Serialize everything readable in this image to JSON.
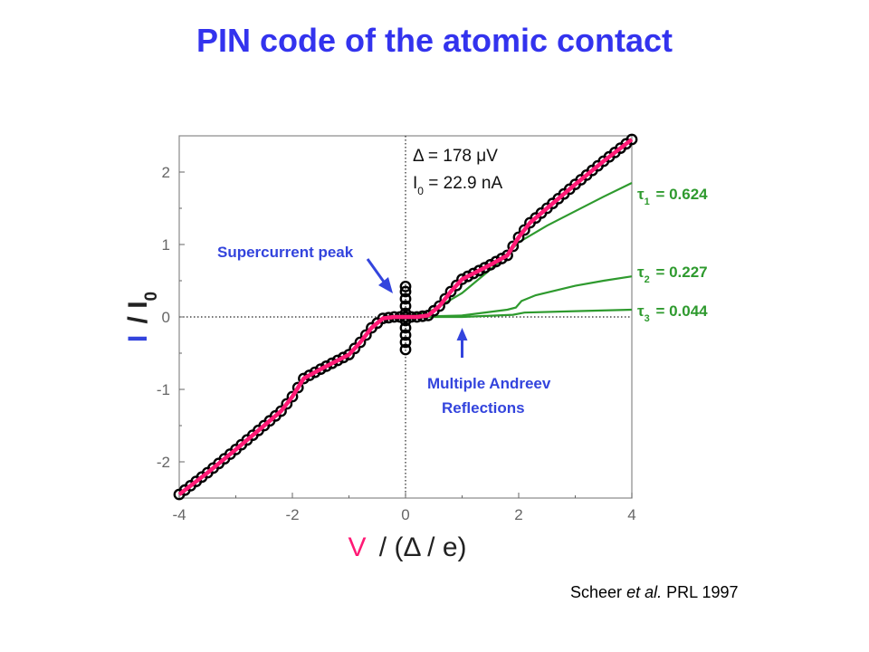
{
  "slide": {
    "title": "PIN code of the atomic contact",
    "citation": {
      "author": "Scheer",
      "etal": "et al.",
      "journal": "PRL 1997"
    }
  },
  "colors": {
    "title": "#3333ee",
    "experiment_markers": "#000000",
    "fit_total": "#ff1a75",
    "channels": "#2e9a2e",
    "annotation_blue": "#3344dd",
    "axis_tick_labels": "#666666"
  },
  "chart_data": {
    "type": "scatter",
    "xlabel": {
      "symbol": "V",
      "rest": "/ (Δ / e)"
    },
    "ylabel": {
      "symbol": "I",
      "rest": "/ I",
      "sub": "0"
    },
    "xlim": [
      -4,
      4
    ],
    "ylim": [
      -2.5,
      2.5
    ],
    "x_ticks": [
      -4,
      -2,
      0,
      2,
      4
    ],
    "y_ticks": [
      -2,
      -1,
      0,
      1,
      2
    ],
    "x_tick_labels": [
      "-4",
      "-2",
      "0",
      "2",
      "4"
    ],
    "y_tick_labels": [
      "-2",
      "-1",
      "0",
      "1",
      "2"
    ],
    "grid": false,
    "reference_lines": {
      "x": 0,
      "y": 0,
      "style": "dotted"
    },
    "parameters": {
      "delta": {
        "prefix": "Δ = ",
        "value": "178 μV"
      },
      "i0": {
        "symbol": "I",
        "sub": "0",
        "value": " = 22.9 nA"
      }
    },
    "channels": [
      {
        "label": "τ",
        "sub": "1",
        "value": " = 0.624",
        "tau": 0.624,
        "x": [
          0,
          0.5,
          1.0,
          1.6,
          2.0,
          2.5,
          3.0,
          3.5,
          4.0
        ],
        "y": [
          0,
          0.1,
          0.33,
          0.72,
          1.03,
          1.26,
          1.46,
          1.66,
          1.85
        ]
      },
      {
        "label": "τ",
        "sub": "2",
        "value": " = 0.227",
        "tau": 0.227,
        "x": [
          0,
          1.0,
          1.8,
          1.95,
          2.05,
          2.3,
          3.0,
          3.5,
          4.0
        ],
        "y": [
          0,
          0.02,
          0.1,
          0.13,
          0.22,
          0.3,
          0.43,
          0.5,
          0.56
        ]
      },
      {
        "label": "τ",
        "sub": "3",
        "value": " = 0.044",
        "tau": 0.044,
        "x": [
          0,
          1.0,
          1.9,
          2.1,
          3.0,
          4.0
        ],
        "y": [
          0,
          0.0,
          0.03,
          0.06,
          0.08,
          0.1
        ]
      }
    ],
    "fit_total": {
      "x": [
        -4.0,
        -3.5,
        -3.0,
        -2.5,
        -2.2,
        -2.0,
        -1.8,
        -1.5,
        -1.2,
        -1.0,
        -0.8,
        -0.6,
        -0.4,
        -0.2,
        0.0,
        0.2,
        0.4,
        0.6,
        0.8,
        1.0,
        1.2,
        1.5,
        1.8,
        2.0,
        2.2,
        2.5,
        3.0,
        3.5,
        4.0
      ],
      "y": [
        -2.45,
        -2.15,
        -1.83,
        -1.5,
        -1.3,
        -1.1,
        -0.85,
        -0.72,
        -0.6,
        -0.52,
        -0.35,
        -0.15,
        -0.02,
        0.0,
        0.0,
        0.0,
        0.02,
        0.15,
        0.35,
        0.52,
        0.6,
        0.72,
        0.85,
        1.1,
        1.3,
        1.5,
        1.83,
        2.15,
        2.45
      ]
    },
    "experiment": {
      "x_step": 0.1,
      "supercurrent_y": [
        -0.45,
        -0.35,
        -0.25,
        -0.15,
        -0.05,
        0.05,
        0.15,
        0.25,
        0.35,
        0.42
      ]
    },
    "annotations": {
      "supercurrent": "Supercurrent peak",
      "mar_line1": "Multiple Andreev",
      "mar_line2": "Reflections"
    }
  }
}
